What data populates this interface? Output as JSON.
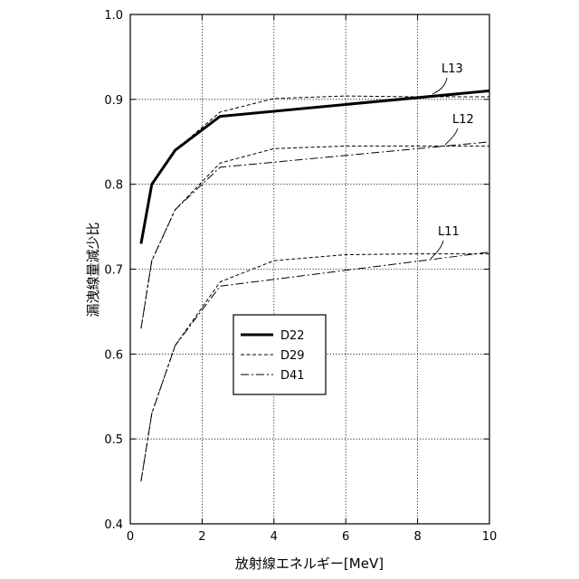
{
  "chart_data": {
    "type": "line",
    "xlabel": "放射線エネルギー[MeV]",
    "ylabel": "漏洩線量減少比",
    "xlim": [
      0,
      10
    ],
    "ylim": [
      0.4,
      1.0
    ],
    "xticks": [
      0,
      2,
      4,
      6,
      8,
      10
    ],
    "yticks": [
      0.4,
      0.5,
      0.6,
      0.7,
      0.8,
      0.9,
      1.0
    ],
    "grid": "dotted",
    "legend": {
      "placement": "center-left",
      "entries": [
        {
          "label": "D22",
          "style": "solid-thick"
        },
        {
          "label": "D29",
          "style": "dashed"
        },
        {
          "label": "D41",
          "style": "dashdot"
        }
      ]
    },
    "groups": [
      {
        "callout": "L13",
        "series": [
          {
            "legend": "D22",
            "x": [
              0.3,
              0.6,
              1.25,
              2.5,
              10
            ],
            "y": [
              0.73,
              0.8,
              0.84,
              0.88,
              0.91
            ]
          },
          {
            "legend": "D29",
            "x": [
              0.3,
              0.6,
              1.25,
              2.5,
              4,
              6,
              8,
              10
            ],
            "y": [
              0.73,
              0.8,
              0.84,
              0.885,
              0.901,
              0.904,
              0.903,
              0.903
            ]
          }
        ]
      },
      {
        "callout": "L12",
        "series": [
          {
            "legend": "D29",
            "x": [
              0.3,
              0.6,
              1.25,
              2.5,
              4,
              6,
              8,
              10
            ],
            "y": [
              0.63,
              0.71,
              0.77,
              0.825,
              0.842,
              0.845,
              0.845,
              0.845
            ]
          },
          {
            "legend": "D41",
            "x": [
              0.3,
              0.6,
              1.25,
              2.5,
              10
            ],
            "y": [
              0.63,
              0.71,
              0.77,
              0.82,
              0.85
            ]
          }
        ]
      },
      {
        "callout": "L11",
        "series": [
          {
            "legend": "D29",
            "x": [
              0.3,
              0.6,
              1.25,
              2.5,
              4,
              6,
              8,
              10
            ],
            "y": [
              0.45,
              0.53,
              0.61,
              0.685,
              0.71,
              0.717,
              0.718,
              0.718
            ]
          },
          {
            "legend": "D41",
            "x": [
              0.3,
              0.6,
              1.25,
              2.5,
              10
            ],
            "y": [
              0.45,
              0.53,
              0.61,
              0.68,
              0.72
            ]
          }
        ]
      }
    ]
  }
}
